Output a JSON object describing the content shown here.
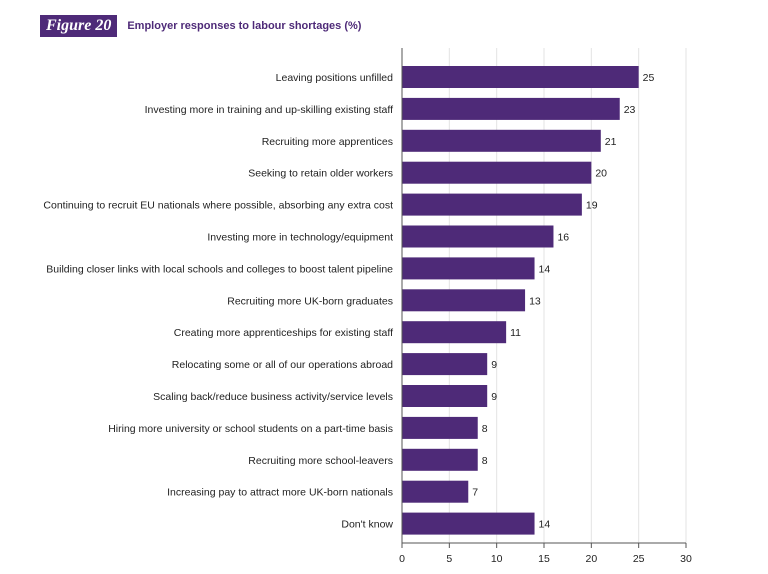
{
  "figure": {
    "badge": "Figure 20",
    "title": "Employer responses to labour shortages (%)"
  },
  "colors": {
    "bar": "#4e2a78",
    "grid": "#e3e3e3",
    "axis": "#555555"
  },
  "chart_data": {
    "type": "bar",
    "orientation": "horizontal",
    "categories": [
      "Leaving positions unfilled",
      "Investing more in training and up-skilling existing staff",
      "Recruiting more apprentices",
      "Seeking to retain older workers",
      "Continuing to recruit EU nationals where possible, absorbing any extra cost",
      "Investing more in technology/equipment",
      "Building closer links with local schools and colleges to boost talent pipeline",
      "Recruiting more UK-born graduates",
      "Creating more apprenticeships for existing staff",
      "Relocating some or all of our operations abroad",
      "Scaling back/reduce business activity/service levels",
      "Hiring more university or school students on a part-time basis",
      "Recruiting more school-leavers",
      "Increasing pay to attract more UK-born nationals",
      "Don't know"
    ],
    "values": [
      25,
      23,
      21,
      20,
      19,
      16,
      14,
      13,
      11,
      9,
      9,
      8,
      8,
      7,
      14
    ],
    "xlim": [
      0,
      30
    ],
    "xticks": [
      0,
      5,
      10,
      15,
      20,
      25,
      30
    ],
    "grid": true
  }
}
